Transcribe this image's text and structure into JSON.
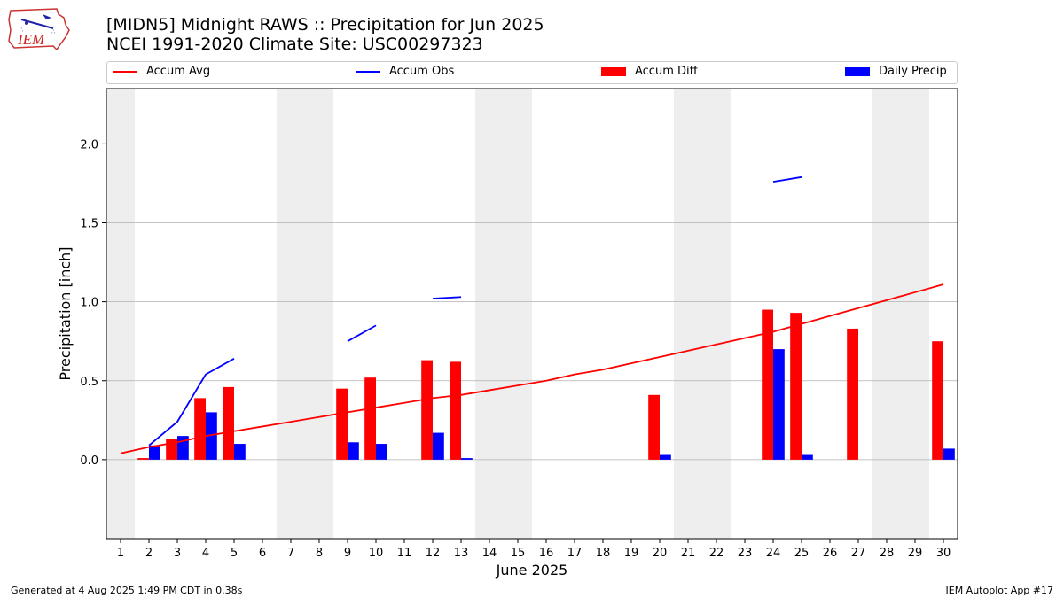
{
  "header": {
    "title": "[MIDN5] Midnight RAWS :: Precipitation for Jun 2025",
    "subtitle": "NCEI 1991-2020 Climate Site: USC00297323",
    "logo_text": "IEM"
  },
  "footer": {
    "generated": "Generated at 4 Aug 2025 1:49 PM CDT in 0.38s",
    "app": "IEM Autoplot App #17"
  },
  "chart_data": {
    "type": "bar",
    "title": "[MIDN5] Midnight RAWS :: Precipitation for Jun 2025",
    "subtitle": "NCEI 1991-2020 Climate Site: USC00297323",
    "xlabel": "June 2025",
    "ylabel": "Precipitation [inch]",
    "xlim": [
      0.5,
      30.5
    ],
    "ylim": [
      -0.5,
      2.35
    ],
    "x_ticks": [
      1,
      2,
      3,
      4,
      5,
      6,
      7,
      8,
      9,
      10,
      11,
      12,
      13,
      14,
      15,
      16,
      17,
      18,
      19,
      20,
      21,
      22,
      23,
      24,
      25,
      26,
      27,
      28,
      29,
      30
    ],
    "y_ticks": [
      0.0,
      0.5,
      1.0,
      1.5,
      2.0
    ],
    "y_tick_labels": [
      "0.0",
      "0.5",
      "1.0",
      "1.5",
      "2.0"
    ],
    "grid": "horizontal",
    "legend_placement": "top",
    "weekend_shading": [
      [
        0.5,
        1.5
      ],
      [
        6.5,
        8.5
      ],
      [
        13.5,
        15.5
      ],
      [
        20.5,
        22.5
      ],
      [
        27.5,
        29.5
      ]
    ],
    "colors": {
      "accum_avg": "#ff0000",
      "accum_obs": "#0000ff",
      "accum_diff": "#ff0000",
      "daily_precip": "#0000ff",
      "weekend": "#eeeeee",
      "grid": "#b0b0b0"
    },
    "series": [
      {
        "name": "Accum Avg",
        "kind": "line",
        "points": [
          [
            1,
            0.04
          ],
          [
            2,
            0.08
          ],
          [
            3,
            0.11
          ],
          [
            4,
            0.15
          ],
          [
            5,
            0.18
          ],
          [
            6,
            0.21
          ],
          [
            7,
            0.24
          ],
          [
            8,
            0.27
          ],
          [
            9,
            0.3
          ],
          [
            10,
            0.33
          ],
          [
            11,
            0.36
          ],
          [
            12,
            0.39
          ],
          [
            13,
            0.41
          ],
          [
            14,
            0.44
          ],
          [
            15,
            0.47
          ],
          [
            16,
            0.5
          ],
          [
            17,
            0.54
          ],
          [
            18,
            0.57
          ],
          [
            19,
            0.61
          ],
          [
            20,
            0.65
          ],
          [
            21,
            0.69
          ],
          [
            22,
            0.73
          ],
          [
            23,
            0.77
          ],
          [
            24,
            0.81
          ],
          [
            25,
            0.86
          ],
          [
            26,
            0.91
          ],
          [
            27,
            0.96
          ],
          [
            28,
            1.01
          ],
          [
            29,
            1.06
          ],
          [
            30,
            1.11
          ]
        ]
      },
      {
        "name": "Accum Obs",
        "kind": "line_segments",
        "segments": [
          [
            [
              2,
              0.09
            ],
            [
              3,
              0.24
            ],
            [
              4,
              0.54
            ],
            [
              5,
              0.64
            ]
          ],
          [
            [
              9,
              0.75
            ],
            [
              10,
              0.85
            ]
          ],
          [
            [
              12,
              1.02
            ],
            [
              13,
              1.03
            ]
          ],
          [
            [
              24,
              1.76
            ],
            [
              25,
              1.79
            ]
          ]
        ]
      },
      {
        "name": "Accum Diff",
        "kind": "bar",
        "x": [
          2,
          3,
          4,
          5,
          9,
          10,
          12,
          13,
          20,
          24,
          25,
          27,
          30
        ],
        "values": [
          0.01,
          0.13,
          0.39,
          0.46,
          0.45,
          0.52,
          0.63,
          0.62,
          0.41,
          0.95,
          0.93,
          0.83,
          0.75
        ]
      },
      {
        "name": "Daily Precip",
        "kind": "bar",
        "x": [
          2,
          3,
          4,
          5,
          9,
          10,
          12,
          13,
          20,
          24,
          25,
          30
        ],
        "values": [
          0.09,
          0.15,
          0.3,
          0.1,
          0.11,
          0.1,
          0.17,
          0.01,
          0.03,
          0.7,
          0.03,
          0.07
        ]
      }
    ]
  }
}
